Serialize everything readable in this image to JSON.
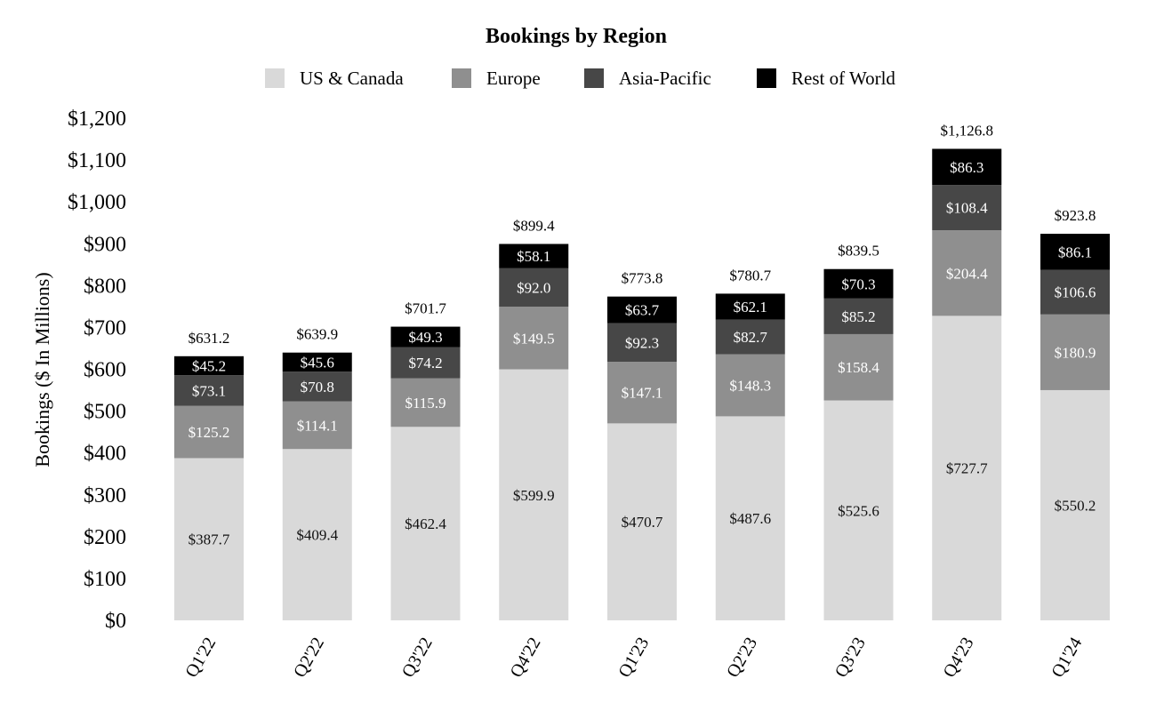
{
  "chart_data": {
    "type": "bar",
    "stacked": true,
    "title": "Bookings by Region",
    "xlabel": "",
    "ylabel": "Bookings ($ In Millions)",
    "ylim": [
      0,
      1200
    ],
    "ytick_step": 100,
    "ytick_labels": [
      "$0",
      "$100",
      "$200",
      "$300",
      "$400",
      "$500",
      "$600",
      "$700",
      "$800",
      "$900",
      "$1,000",
      "$1,100",
      "$1,200"
    ],
    "legend_position": "top-center",
    "grid": false,
    "categories": [
      "Q1'22",
      "Q2'22",
      "Q3'22",
      "Q4'22",
      "Q1'23",
      "Q2'23",
      "Q3'23",
      "Q4'23",
      "Q1'24"
    ],
    "series": [
      {
        "name": "US & Canada",
        "color": "#d9d9d9",
        "label_color": "#111111",
        "values": [
          387.7,
          409.4,
          462.4,
          599.9,
          470.7,
          487.6,
          525.6,
          727.7,
          550.2
        ],
        "labels": [
          "$387.7",
          "$409.4",
          "$462.4",
          "$599.9",
          "$470.7",
          "$487.6",
          "$525.6",
          "$727.7",
          "$550.2"
        ]
      },
      {
        "name": "Europe",
        "color": "#8f8f8f",
        "label_color": "#ffffff",
        "values": [
          125.2,
          114.1,
          115.9,
          149.5,
          147.1,
          148.3,
          158.4,
          204.4,
          180.9
        ],
        "labels": [
          "$125.2",
          "$114.1",
          "$115.9",
          "$149.5",
          "$147.1",
          "$148.3",
          "$158.4",
          "$204.4",
          "$180.9"
        ]
      },
      {
        "name": "Asia-Pacific",
        "color": "#474747",
        "label_color": "#ffffff",
        "values": [
          73.1,
          70.8,
          74.2,
          92.0,
          92.3,
          82.7,
          85.2,
          108.4,
          106.6
        ],
        "labels": [
          "$73.1",
          "$70.8",
          "$74.2",
          "$92.0",
          "$92.3",
          "$82.7",
          "$85.2",
          "$108.4",
          "$106.6"
        ]
      },
      {
        "name": "Rest of World",
        "color": "#000000",
        "label_color": "#ffffff",
        "values": [
          45.2,
          45.6,
          49.3,
          58.1,
          63.7,
          62.1,
          70.3,
          86.3,
          86.1
        ],
        "labels": [
          "$45.2",
          "$45.6",
          "$49.3",
          "$58.1",
          "$63.7",
          "$62.1",
          "$70.3",
          "$86.3",
          "$86.1"
        ]
      }
    ],
    "totals": [
      631.2,
      639.9,
      701.7,
      899.4,
      773.8,
      780.7,
      839.5,
      1126.8,
      923.8
    ],
    "total_labels": [
      "$631.2",
      "$639.9",
      "$701.7",
      "$899.4",
      "$773.8",
      "$780.7",
      "$839.5",
      "$1,126.8",
      "$923.8"
    ]
  }
}
